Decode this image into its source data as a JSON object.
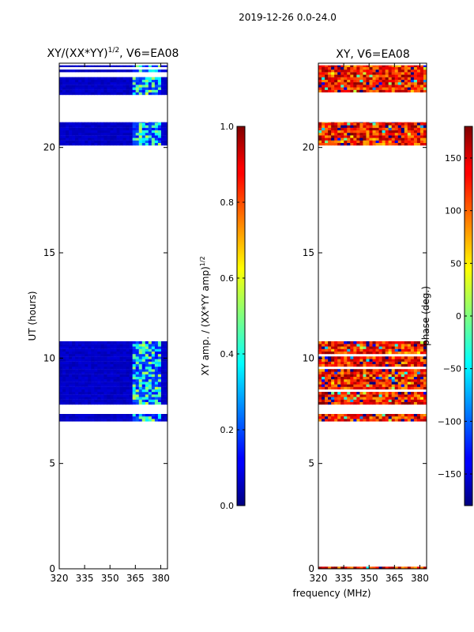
{
  "figure": {
    "suptitle": "2019-12-26 0.0-24.0",
    "xlabel_shared": "frequency (MHz)"
  },
  "chart_data": [
    {
      "type": "heatmap",
      "title_main": "XY/(XX*YY)",
      "title_sup": "1/2",
      "title_tail": ", V6=EA08",
      "ylabel": "UT (hours)",
      "xlim": [
        320,
        384
      ],
      "ylim": [
        0,
        24
      ],
      "xticks": [
        "320",
        "335",
        "350",
        "365",
        "380"
      ],
      "xtick_values": [
        320,
        335,
        350,
        365,
        380
      ],
      "yticks": [
        "0",
        "5",
        "10",
        "15",
        "20"
      ],
      "ytick_values": [
        0,
        5,
        10,
        15,
        20
      ],
      "colorbar": {
        "label_main": "XY amp. / (XX*YY amp)",
        "label_sup": "1/2",
        "range": [
          0,
          1
        ],
        "ticks": [
          "0.0",
          "0.2",
          "0.4",
          "0.6",
          "0.8",
          "1.0"
        ],
        "tick_values": [
          0,
          0.2,
          0.4,
          0.6,
          0.8,
          1.0
        ],
        "colormap": "jet"
      },
      "data_bands_ut": [
        [
          0.0,
          0.1
        ],
        [
          7.0,
          7.35
        ],
        [
          7.8,
          10.8
        ],
        [
          20.1,
          21.2
        ],
        [
          22.5,
          23.9
        ]
      ],
      "bright_channels_mhz": [
        363,
        380
      ],
      "typical_value": 0.05,
      "bright_value": 0.45
    },
    {
      "type": "heatmap",
      "title": "XY, V6=EA08",
      "xlim": [
        320,
        384
      ],
      "ylim": [
        0,
        24
      ],
      "xticks": [
        "320",
        "335",
        "350",
        "365",
        "380"
      ],
      "xtick_values": [
        320,
        335,
        350,
        365,
        380
      ],
      "yticks": [
        "0",
        "5",
        "10",
        "15",
        "20"
      ],
      "ytick_values": [
        0,
        5,
        10,
        15,
        20
      ],
      "colorbar": {
        "label": "phase (deg.)",
        "range": [
          -180,
          180
        ],
        "ticks": [
          "−150",
          "−100",
          "−50",
          "0",
          "50",
          "100",
          "150"
        ],
        "tick_values": [
          -150,
          -100,
          -50,
          0,
          50,
          100,
          150
        ],
        "colormap": "jet"
      },
      "data_bands_ut": [
        [
          0.0,
          0.1
        ],
        [
          7.0,
          7.35
        ],
        [
          7.8,
          10.8
        ],
        [
          20.1,
          21.2
        ],
        [
          22.5,
          23.9
        ]
      ],
      "typical_phase_deg": 130
    }
  ]
}
